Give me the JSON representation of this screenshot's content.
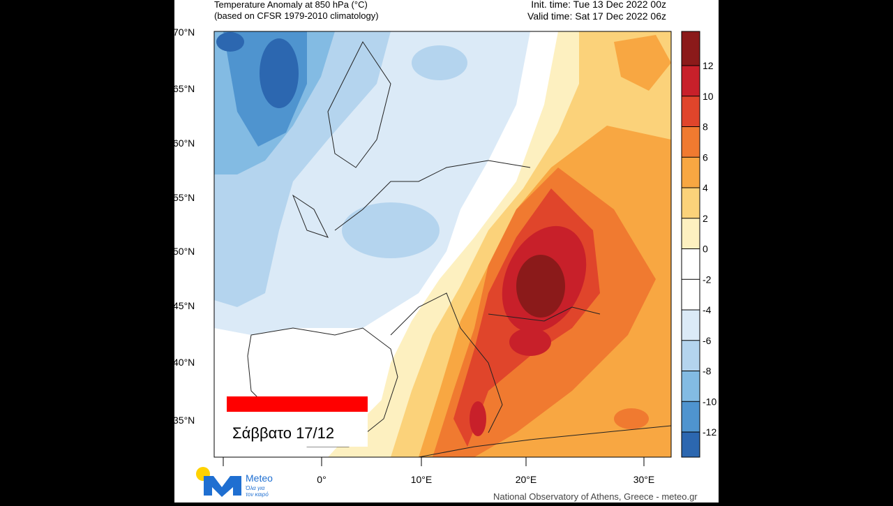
{
  "header": {
    "title_line1": "Temperature Anomaly at 850 hPa (°C)",
    "title_line2": "(based on CFSR 1979-2010 climatology)",
    "init_time": "Init. time: Tue 13 Dec 2022 00z",
    "valid_time": "Valid time: Sat 17 Dec 2022 06z"
  },
  "map": {
    "lat_labels": [
      "70°N",
      "65°N",
      "60°N",
      "55°N",
      "50°N",
      "45°N",
      "40°N",
      "35°N"
    ],
    "lon_labels": [
      "0°",
      "10°E",
      "20°E",
      "30°E"
    ]
  },
  "colorbar": {
    "ticks": [
      12,
      10,
      8,
      6,
      4,
      2,
      0,
      -2,
      -4,
      -6,
      -8,
      -10,
      -12
    ],
    "colors": [
      "#8b1a1a",
      "#c8202a",
      "#e0452b",
      "#f07a30",
      "#f8a742",
      "#fbd27a",
      "#fdf0c0",
      "#ffffff",
      "#ffffff",
      "#dbeaf7",
      "#b4d4ee",
      "#83bbe3",
      "#4f94cf",
      "#2c67b0",
      "#173a7f"
    ]
  },
  "overlay_label": "Σάββατο 17/12",
  "logo": {
    "name": "Meteo",
    "tagline_1": "Όλα για",
    "tagline_2": "τον καιρό"
  },
  "footer": "National Observatory of Athens, Greece - meteo.gr"
}
